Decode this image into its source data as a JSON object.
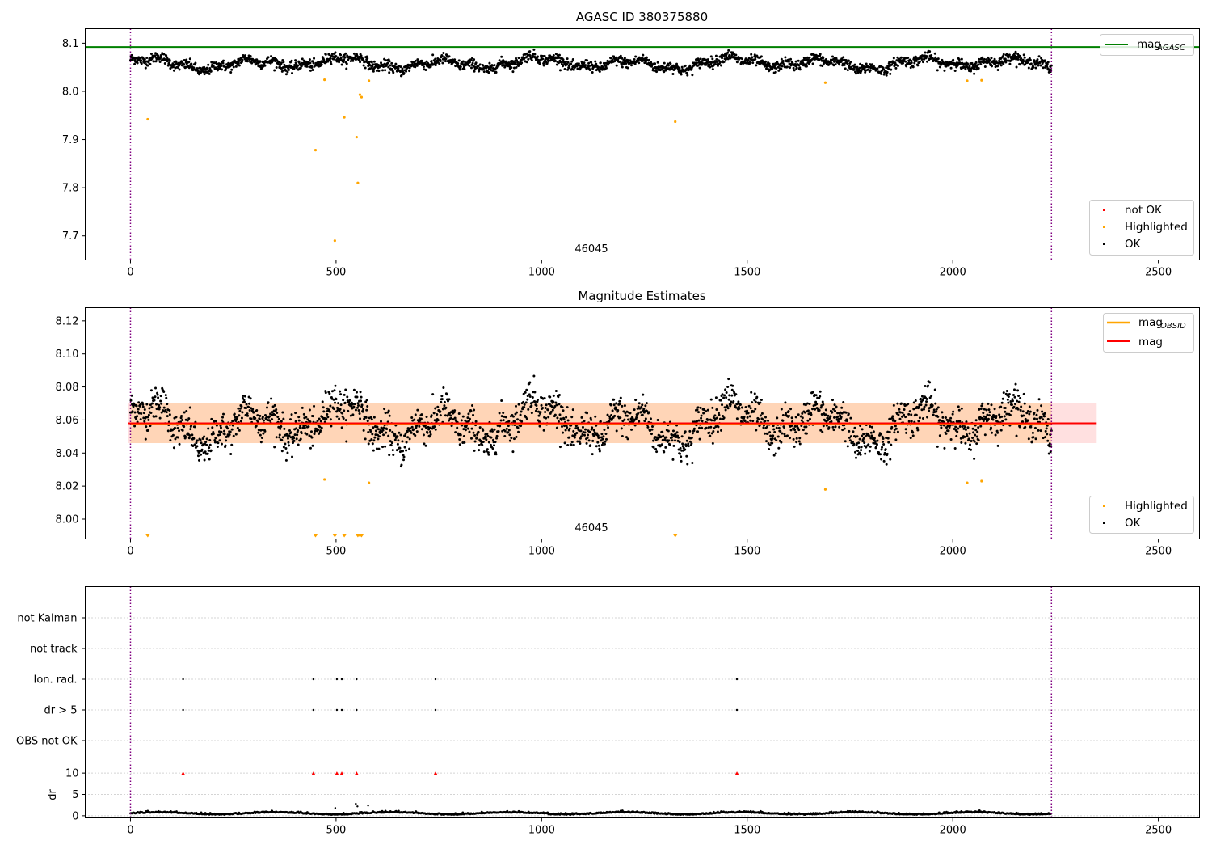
{
  "chart_data": [
    {
      "type": "scatter",
      "title": "AGASC ID 380375880",
      "annotation": "46045",
      "xlim": [
        -110,
        2600
      ],
      "ylim": [
        7.65,
        8.13
      ],
      "xticks": [
        "0",
        "500",
        "1000",
        "1500",
        "2000",
        "2500"
      ],
      "yticks": [
        "7.7",
        "7.8",
        "7.9",
        "8.0",
        "8.1"
      ],
      "reference_line": {
        "name": "mag_AGASC",
        "value": 8.092,
        "color": "#008000"
      },
      "obsid_boundaries": [
        0,
        2240
      ],
      "legend_lines": [
        "mag",
        "AGASC"
      ],
      "legend_points": [
        "not OK",
        "Highlighted",
        "OK"
      ],
      "ok_series": {
        "x_range": [
          0,
          2240
        ],
        "n_points": 2240,
        "mean": 8.058,
        "std": 0.012,
        "color": "#000000"
      },
      "highlighted": {
        "color": "#ffa500",
        "x": [
          42,
          450,
          472,
          497,
          520,
          550,
          553,
          558,
          562,
          580,
          1325,
          1690,
          2035,
          2070
        ],
        "y": [
          7.942,
          7.878,
          8.024,
          7.69,
          7.946,
          7.905,
          7.81,
          7.993,
          7.988,
          8.022,
          7.937,
          8.018,
          8.022,
          8.023
        ]
      }
    },
    {
      "type": "scatter",
      "title": "Magnitude Estimates",
      "annotation": "46045",
      "xlim": [
        -110,
        2600
      ],
      "ylim": [
        7.988,
        8.128
      ],
      "xticks": [
        "0",
        "500",
        "1000",
        "1500",
        "2000",
        "2500"
      ],
      "yticks": [
        "8.00",
        "8.02",
        "8.04",
        "8.06",
        "8.08",
        "8.10",
        "8.12"
      ],
      "mag_line": {
        "name": "mag",
        "value": 8.058,
        "x_range": [
          -5,
          2350
        ],
        "color": "#ff0000"
      },
      "mag_obsid_line": {
        "name": "mag_OBSID",
        "value": 8.0575,
        "x_range": [
          0,
          2240
        ],
        "color": "#ffa500"
      },
      "band": {
        "low": 8.046,
        "high": 8.07
      },
      "legend_lines": [
        "mag",
        "OBSID",
        "mag"
      ],
      "legend_points": [
        "Highlighted",
        "OK"
      ],
      "highlighted": {
        "color": "#ffa500",
        "x": [
          472,
          580,
          1690,
          2035,
          2070
        ],
        "y": [
          8.024,
          8.022,
          8.018,
          8.022,
          8.023
        ]
      },
      "below_range_markers_x": [
        42,
        450,
        497,
        520,
        553,
        558,
        562,
        1325
      ]
    },
    {
      "type": "scatter",
      "xlim": [
        -110,
        2600
      ],
      "categories": [
        "not Kalman",
        "not track",
        "Ion. rad.",
        "dr > 5",
        "OBS not OK"
      ],
      "flag_events": [
        {
          "category": "Ion. rad.",
          "x": [
            128,
            445,
            502,
            514,
            550,
            742,
            1475
          ]
        },
        {
          "category": "dr > 5",
          "x": [
            128,
            445,
            502,
            514,
            550,
            742,
            1475
          ]
        }
      ]
    },
    {
      "type": "scatter",
      "ylabel": "dr",
      "xlim": [
        -110,
        2600
      ],
      "ylim": [
        -0.5,
        10.5
      ],
      "xticks": [
        "0",
        "500",
        "1000",
        "1500",
        "2000",
        "2500"
      ],
      "yticks": [
        "0",
        "5",
        "10"
      ],
      "dr_series": {
        "x_range": [
          0,
          2240
        ],
        "typical": 0.5
      },
      "dr_outliers": {
        "x": [
          498,
          548,
          552,
          578
        ],
        "y": [
          1.8,
          2.8,
          2.2,
          2.4
        ]
      },
      "dr_over_limit": {
        "x": [
          128,
          445,
          502,
          514,
          550,
          742,
          1475
        ],
        "y": [
          10,
          10,
          10,
          10,
          10,
          10,
          10
        ],
        "color": "#ff0000"
      }
    }
  ]
}
